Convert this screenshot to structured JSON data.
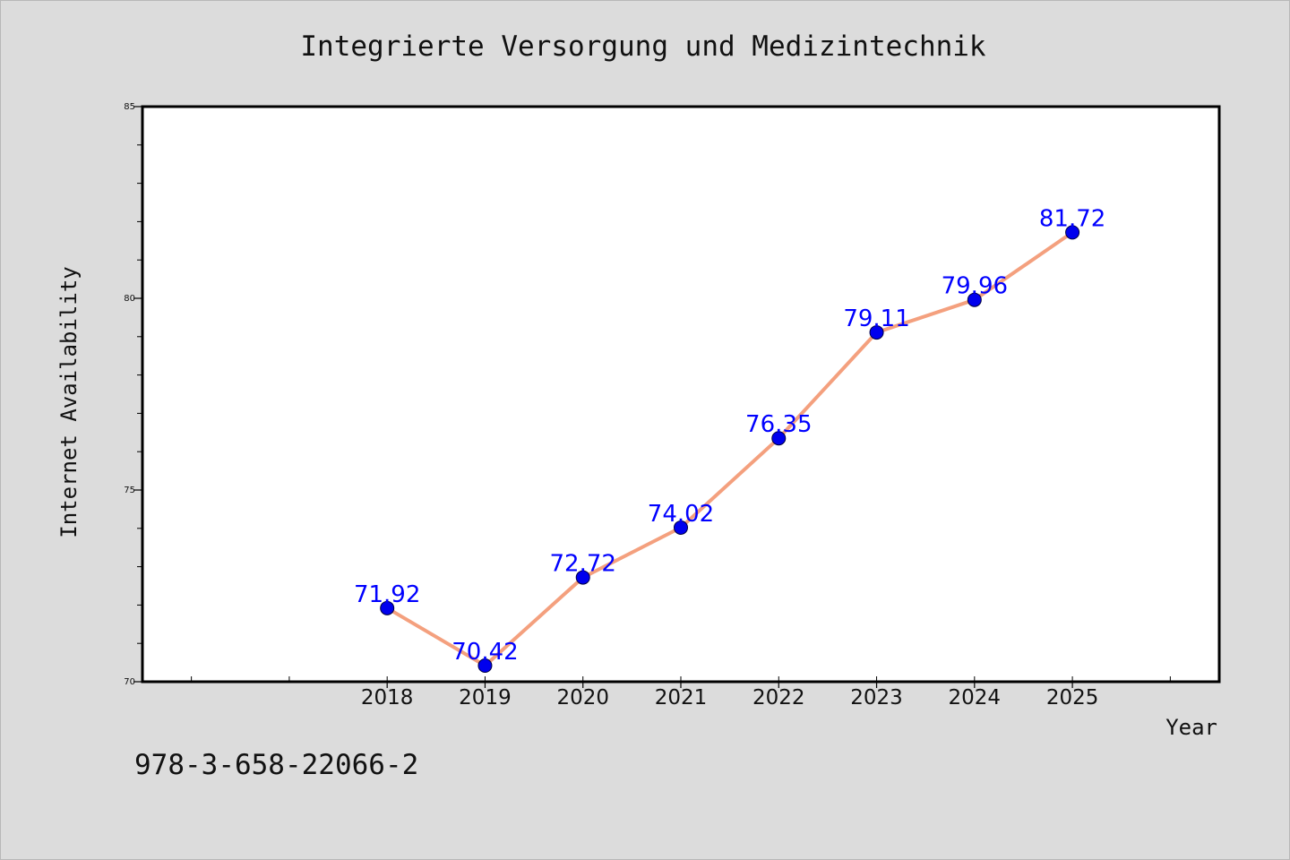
{
  "chart_data": {
    "type": "line",
    "title": "Integrierte Versorgung und Medizintechnik",
    "xlabel": "Year",
    "ylabel": "Internet Availability",
    "x": [
      2018,
      2019,
      2020,
      2021,
      2022,
      2023,
      2024,
      2025
    ],
    "x_tick_labels": [
      "2018",
      "2019",
      "2020",
      "2021",
      "2022",
      "2023",
      "2024",
      "2025"
    ],
    "xlim": [
      2015.5,
      2026.5
    ],
    "ylim": [
      70,
      85
    ],
    "y_ticks": [
      70,
      75,
      80,
      85
    ],
    "y_tick_labels": [
      "70",
      "75",
      "80",
      "85"
    ],
    "series": [
      {
        "values": [
          71.92,
          70.42,
          72.72,
          74.02,
          76.35,
          79.11,
          79.96,
          81.72
        ],
        "data_labels": [
          "71.92",
          "70.42",
          "72.72",
          "74.02",
          "76.35",
          "79.11",
          "79.96",
          "81.72"
        ],
        "line_color": "#f4a07e",
        "marker_color": "#0000ee"
      }
    ],
    "grid": false,
    "legend": "none"
  },
  "footer": {
    "code": "978-3-658-22066-2"
  },
  "colors": {
    "background": "#dcdcdc",
    "plot_background": "#ffffff",
    "axis": "#000000",
    "data_label": "#0000ff"
  }
}
